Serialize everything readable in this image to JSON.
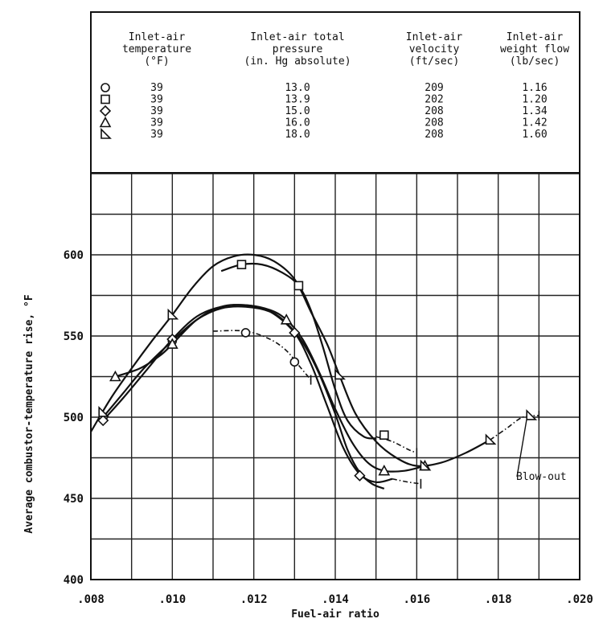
{
  "chart_data": {
    "type": "line",
    "xlabel": "Fuel-air ratio",
    "ylabel": "Average combustor-temperature rise, °F",
    "xlim": [
      0.008,
      0.02
    ],
    "ylim": [
      400,
      600
    ],
    "x_ticks": [
      ".008",
      ".010",
      ".012",
      ".014",
      ".016",
      ".018",
      ".020"
    ],
    "y_ticks": [
      "400",
      "450",
      "500",
      "550",
      "600"
    ],
    "grid": true,
    "legend_placement": "top table",
    "legend_columns": [
      [
        "Inlet-air",
        "temperature",
        "(°F)"
      ],
      [
        "Inlet-air total",
        "pressure",
        "(in. Hg absolute)"
      ],
      [
        "Inlet-air",
        "velocity",
        "(ft/sec)"
      ],
      [
        "Inlet-air",
        "weight flow",
        "(lb/sec)"
      ]
    ],
    "series": [
      {
        "symbol": "circle",
        "temperature": "39",
        "pressure": "13.0",
        "velocity": "209",
        "weight_flow": "1.16",
        "x": [
          0.0083,
          0.01,
          0.0118,
          0.013
        ],
        "y": [
          500,
          547,
          552,
          534
        ],
        "curve": [
          [
            0.0083,
            500
          ],
          [
            0.0088,
            515
          ],
          [
            0.0093,
            530
          ],
          [
            0.01,
            547
          ],
          [
            0.0106,
            560
          ],
          [
            0.0112,
            567
          ],
          [
            0.0118,
            568
          ],
          [
            0.0124,
            565
          ],
          [
            0.0128,
            558
          ],
          [
            0.0132,
            546
          ],
          [
            0.0136,
            527
          ],
          [
            0.014,
            502
          ],
          [
            0.0143,
            480
          ],
          [
            0.0146,
            466
          ],
          [
            0.0149,
            459
          ],
          [
            0.0152,
            456
          ]
        ],
        "dash": [
          [
            0.011,
            553
          ],
          [
            0.0118,
            553
          ],
          [
            0.0124,
            548
          ],
          [
            0.0128,
            541
          ],
          [
            0.0131,
            532
          ],
          [
            0.0134,
            523
          ]
        ]
      },
      {
        "symbol": "square",
        "temperature": "39",
        "pressure": "13.9",
        "velocity": "202",
        "weight_flow": "1.20",
        "x": [
          0.0117,
          0.0131,
          0.0152
        ],
        "y": [
          594,
          581,
          489
        ],
        "curve": [
          [
            0.0112,
            590
          ],
          [
            0.0117,
            594
          ],
          [
            0.0122,
            594
          ],
          [
            0.0127,
            589
          ],
          [
            0.0131,
            581
          ],
          [
            0.0134,
            566
          ],
          [
            0.0137,
            543
          ],
          [
            0.014,
            517
          ],
          [
            0.0143,
            498
          ],
          [
            0.0147,
            488
          ],
          [
            0.015,
            487
          ]
        ],
        "dash": [
          [
            0.015,
            488
          ],
          [
            0.0154,
            485
          ],
          [
            0.0158,
            480
          ],
          [
            0.016,
            478
          ]
        ]
      },
      {
        "symbol": "diamond",
        "temperature": "39",
        "pressure": "15.0",
        "velocity": "208",
        "weight_flow": "1.34",
        "x": [
          0.0083,
          0.01,
          0.013,
          0.0146
        ],
        "y": [
          498,
          548,
          552,
          464
        ],
        "curve": [
          [
            0.0083,
            498
          ],
          [
            0.0088,
            512
          ],
          [
            0.0094,
            530
          ],
          [
            0.01,
            548
          ],
          [
            0.0106,
            562
          ],
          [
            0.0112,
            568
          ],
          [
            0.0118,
            569
          ],
          [
            0.0124,
            565
          ],
          [
            0.013,
            552
          ],
          [
            0.0134,
            533
          ],
          [
            0.0138,
            507
          ],
          [
            0.0142,
            481
          ],
          [
            0.0146,
            465
          ],
          [
            0.015,
            460
          ],
          [
            0.0154,
            462
          ]
        ],
        "dash": [
          [
            0.0154,
            462
          ],
          [
            0.0158,
            460
          ],
          [
            0.0161,
            459
          ]
        ]
      },
      {
        "symbol": "triangle-up",
        "temperature": "39",
        "pressure": "16.0",
        "velocity": "208",
        "weight_flow": "1.42",
        "x": [
          0.0086,
          0.01,
          0.0128,
          0.0152,
          0.0162
        ],
        "y": [
          525,
          545,
          560,
          467,
          470
        ],
        "curve": [
          [
            0.0086,
            525
          ],
          [
            0.0092,
            530
          ],
          [
            0.0097,
            538
          ],
          [
            0.01,
            545
          ],
          [
            0.0106,
            560
          ],
          [
            0.0112,
            568
          ],
          [
            0.0118,
            569
          ],
          [
            0.0124,
            566
          ],
          [
            0.0128,
            560
          ],
          [
            0.0132,
            548
          ],
          [
            0.0136,
            528
          ],
          [
            0.014,
            505
          ],
          [
            0.0144,
            485
          ],
          [
            0.0148,
            472
          ],
          [
            0.0152,
            467
          ],
          [
            0.0157,
            467
          ],
          [
            0.0162,
            470
          ]
        ]
      },
      {
        "symbol": "triangle-right",
        "temperature": "39",
        "pressure": "18.0",
        "velocity": "208",
        "weight_flow": "1.60",
        "x": [
          0.0083,
          0.01,
          0.0141,
          0.0162,
          0.0178,
          0.0188
        ],
        "y": [
          503,
          563,
          526,
          470,
          486,
          501
        ],
        "curve": [
          [
            0.008,
            491
          ],
          [
            0.0085,
            512
          ],
          [
            0.009,
            530
          ],
          [
            0.0095,
            547
          ],
          [
            0.01,
            563
          ],
          [
            0.0105,
            580
          ],
          [
            0.011,
            593
          ],
          [
            0.0115,
            599
          ],
          [
            0.012,
            600
          ],
          [
            0.0125,
            596
          ],
          [
            0.013,
            585
          ],
          [
            0.0134,
            565
          ],
          [
            0.0138,
            545
          ],
          [
            0.0141,
            526
          ],
          [
            0.0145,
            502
          ],
          [
            0.015,
            485
          ],
          [
            0.0155,
            475
          ],
          [
            0.016,
            470
          ],
          [
            0.0166,
            472
          ],
          [
            0.0172,
            478
          ],
          [
            0.0178,
            486
          ]
        ],
        "dash": [
          [
            0.0178,
            486
          ],
          [
            0.0182,
            493
          ],
          [
            0.0186,
            500
          ],
          [
            0.019,
            501
          ]
        ]
      }
    ],
    "annotation": "Blow-out"
  }
}
